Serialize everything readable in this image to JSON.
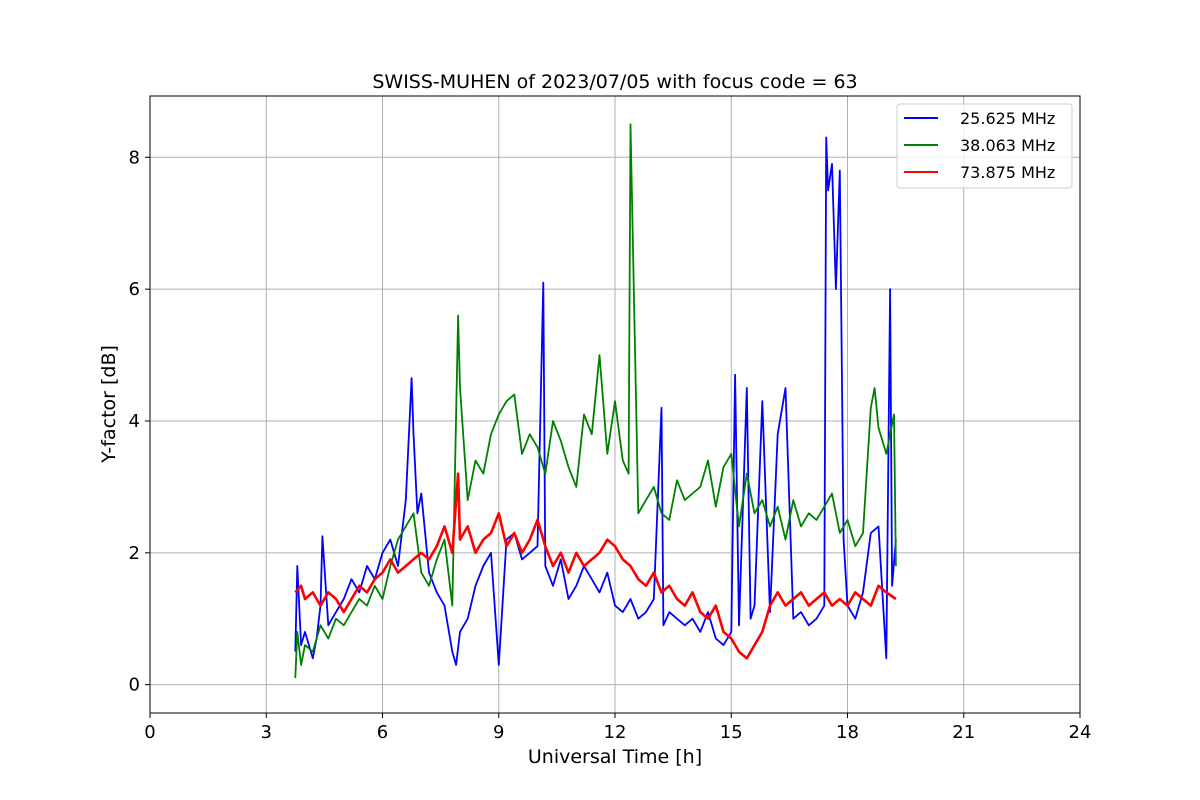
{
  "chart_data": {
    "type": "line",
    "title": "SWISS-MUHEN of 2023/07/05 with focus code = 63",
    "xlabel": "Universal Time [h]",
    "ylabel": "Y-factor [dB]",
    "xlim": [
      0,
      24
    ],
    "ylim": [
      -0.43,
      8.93
    ],
    "xticks": [
      0,
      3,
      6,
      9,
      12,
      15,
      18,
      21,
      24
    ],
    "yticks": [
      0,
      2,
      4,
      6,
      8
    ],
    "grid": true,
    "legend_position": "top-right",
    "series": [
      {
        "name": "25.625 MHz",
        "color": "#0000ff",
        "x": [
          3.75,
          3.8,
          3.9,
          4.0,
          4.2,
          4.3,
          4.4,
          4.45,
          4.6,
          4.8,
          5.0,
          5.2,
          5.4,
          5.6,
          5.8,
          6.0,
          6.2,
          6.4,
          6.6,
          6.75,
          6.8,
          6.9,
          7.0,
          7.2,
          7.4,
          7.6,
          7.8,
          7.9,
          8.0,
          8.2,
          8.4,
          8.6,
          8.8,
          9.0,
          9.2,
          9.4,
          9.6,
          9.8,
          10.0,
          10.15,
          10.2,
          10.4,
          10.6,
          10.8,
          11.0,
          11.2,
          11.4,
          11.6,
          11.8,
          12.0,
          12.2,
          12.4,
          12.6,
          12.8,
          13.0,
          13.2,
          13.25,
          13.4,
          13.6,
          13.8,
          14.0,
          14.2,
          14.4,
          14.6,
          14.8,
          15.0,
          15.1,
          15.2,
          15.4,
          15.5,
          15.6,
          15.8,
          16.0,
          16.2,
          16.4,
          16.6,
          16.8,
          17.0,
          17.2,
          17.4,
          17.45,
          17.5,
          17.6,
          17.7,
          17.8,
          17.85,
          17.9,
          18.0,
          18.2,
          18.4,
          18.6,
          18.8,
          19.0,
          19.1,
          19.15,
          19.25
        ],
        "y": [
          0.5,
          1.8,
          0.6,
          0.8,
          0.4,
          0.7,
          1.2,
          2.25,
          0.9,
          1.1,
          1.3,
          1.6,
          1.4,
          1.8,
          1.6,
          2.0,
          2.2,
          1.8,
          2.8,
          4.65,
          3.8,
          2.6,
          2.9,
          1.7,
          1.4,
          1.2,
          0.5,
          0.3,
          0.8,
          1.0,
          1.5,
          1.8,
          2.0,
          0.3,
          2.2,
          2.3,
          1.9,
          2.0,
          2.1,
          6.1,
          1.8,
          1.5,
          1.9,
          1.3,
          1.5,
          1.8,
          1.6,
          1.4,
          1.7,
          1.2,
          1.1,
          1.3,
          1.0,
          1.1,
          1.3,
          4.2,
          0.9,
          1.1,
          1.0,
          0.9,
          1.0,
          0.8,
          1.1,
          0.7,
          0.6,
          0.8,
          4.7,
          0.9,
          4.5,
          1.0,
          1.2,
          4.3,
          1.1,
          3.8,
          4.5,
          1.0,
          1.1,
          0.9,
          1.0,
          1.2,
          8.3,
          7.5,
          7.9,
          6.0,
          7.8,
          5.0,
          2.2,
          1.2,
          1.0,
          1.4,
          2.3,
          2.4,
          0.4,
          6.0,
          1.5,
          2.2
        ]
      },
      {
        "name": "38.063 MHz",
        "color": "#008000",
        "x": [
          3.75,
          3.8,
          3.9,
          4.0,
          4.2,
          4.4,
          4.6,
          4.8,
          5.0,
          5.2,
          5.4,
          5.6,
          5.8,
          6.0,
          6.2,
          6.4,
          6.6,
          6.8,
          7.0,
          7.2,
          7.4,
          7.6,
          7.8,
          7.95,
          8.0,
          8.2,
          8.4,
          8.6,
          8.8,
          9.0,
          9.2,
          9.4,
          9.6,
          9.8,
          10.0,
          10.2,
          10.4,
          10.6,
          10.8,
          11.0,
          11.2,
          11.4,
          11.6,
          11.8,
          12.0,
          12.2,
          12.35,
          12.4,
          12.6,
          12.8,
          13.0,
          13.2,
          13.4,
          13.6,
          13.8,
          14.0,
          14.2,
          14.4,
          14.6,
          14.8,
          15.0,
          15.2,
          15.4,
          15.6,
          15.8,
          16.0,
          16.2,
          16.4,
          16.6,
          16.8,
          17.0,
          17.2,
          17.4,
          17.6,
          17.8,
          18.0,
          18.2,
          18.4,
          18.6,
          18.7,
          18.8,
          19.0,
          19.2,
          19.25
        ],
        "y": [
          0.1,
          0.8,
          0.3,
          0.6,
          0.5,
          0.9,
          0.7,
          1.0,
          0.9,
          1.1,
          1.3,
          1.2,
          1.5,
          1.3,
          1.8,
          2.2,
          2.4,
          2.6,
          1.7,
          1.5,
          1.9,
          2.2,
          1.2,
          5.6,
          4.5,
          2.8,
          3.4,
          3.2,
          3.8,
          4.1,
          4.3,
          4.4,
          3.5,
          3.8,
          3.6,
          3.2,
          4.0,
          3.7,
          3.3,
          3.0,
          4.1,
          3.8,
          5.0,
          3.5,
          4.3,
          3.4,
          3.2,
          8.5,
          2.6,
          2.8,
          3.0,
          2.6,
          2.5,
          3.1,
          2.8,
          2.9,
          3.0,
          3.4,
          2.7,
          3.3,
          3.5,
          2.4,
          3.2,
          2.6,
          2.8,
          2.4,
          2.7,
          2.2,
          2.8,
          2.4,
          2.6,
          2.5,
          2.7,
          2.9,
          2.3,
          2.5,
          2.1,
          2.3,
          4.2,
          4.5,
          3.9,
          3.5,
          4.1,
          1.8
        ]
      },
      {
        "name": "73.875 MHz",
        "color": "#ff0000",
        "x": [
          3.75,
          3.9,
          4.0,
          4.2,
          4.4,
          4.6,
          4.8,
          5.0,
          5.2,
          5.4,
          5.6,
          5.8,
          6.0,
          6.2,
          6.4,
          6.6,
          6.8,
          7.0,
          7.2,
          7.4,
          7.6,
          7.8,
          7.95,
          8.0,
          8.2,
          8.4,
          8.6,
          8.8,
          9.0,
          9.2,
          9.4,
          9.6,
          9.8,
          10.0,
          10.2,
          10.4,
          10.6,
          10.8,
          11.0,
          11.2,
          11.4,
          11.6,
          11.8,
          12.0,
          12.2,
          12.4,
          12.6,
          12.8,
          13.0,
          13.2,
          13.4,
          13.6,
          13.8,
          14.0,
          14.2,
          14.4,
          14.6,
          14.8,
          15.0,
          15.2,
          15.4,
          15.6,
          15.8,
          16.0,
          16.2,
          16.4,
          16.6,
          16.8,
          17.0,
          17.2,
          17.4,
          17.6,
          17.8,
          18.0,
          18.2,
          18.4,
          18.6,
          18.8,
          19.0,
          19.25
        ],
        "y": [
          1.4,
          1.5,
          1.3,
          1.4,
          1.2,
          1.4,
          1.3,
          1.1,
          1.3,
          1.5,
          1.4,
          1.6,
          1.7,
          1.9,
          1.7,
          1.8,
          1.9,
          2.0,
          1.9,
          2.1,
          2.4,
          2.0,
          3.2,
          2.2,
          2.4,
          2.0,
          2.2,
          2.3,
          2.6,
          2.1,
          2.3,
          2.0,
          2.2,
          2.5,
          2.1,
          1.8,
          2.0,
          1.7,
          2.0,
          1.8,
          1.9,
          2.0,
          2.2,
          2.1,
          1.9,
          1.8,
          1.6,
          1.5,
          1.7,
          1.4,
          1.5,
          1.3,
          1.2,
          1.4,
          1.1,
          1.0,
          1.2,
          0.8,
          0.7,
          0.5,
          0.4,
          0.6,
          0.8,
          1.2,
          1.4,
          1.2,
          1.3,
          1.4,
          1.2,
          1.3,
          1.4,
          1.2,
          1.3,
          1.2,
          1.4,
          1.3,
          1.2,
          1.5,
          1.4,
          1.3
        ]
      }
    ]
  }
}
